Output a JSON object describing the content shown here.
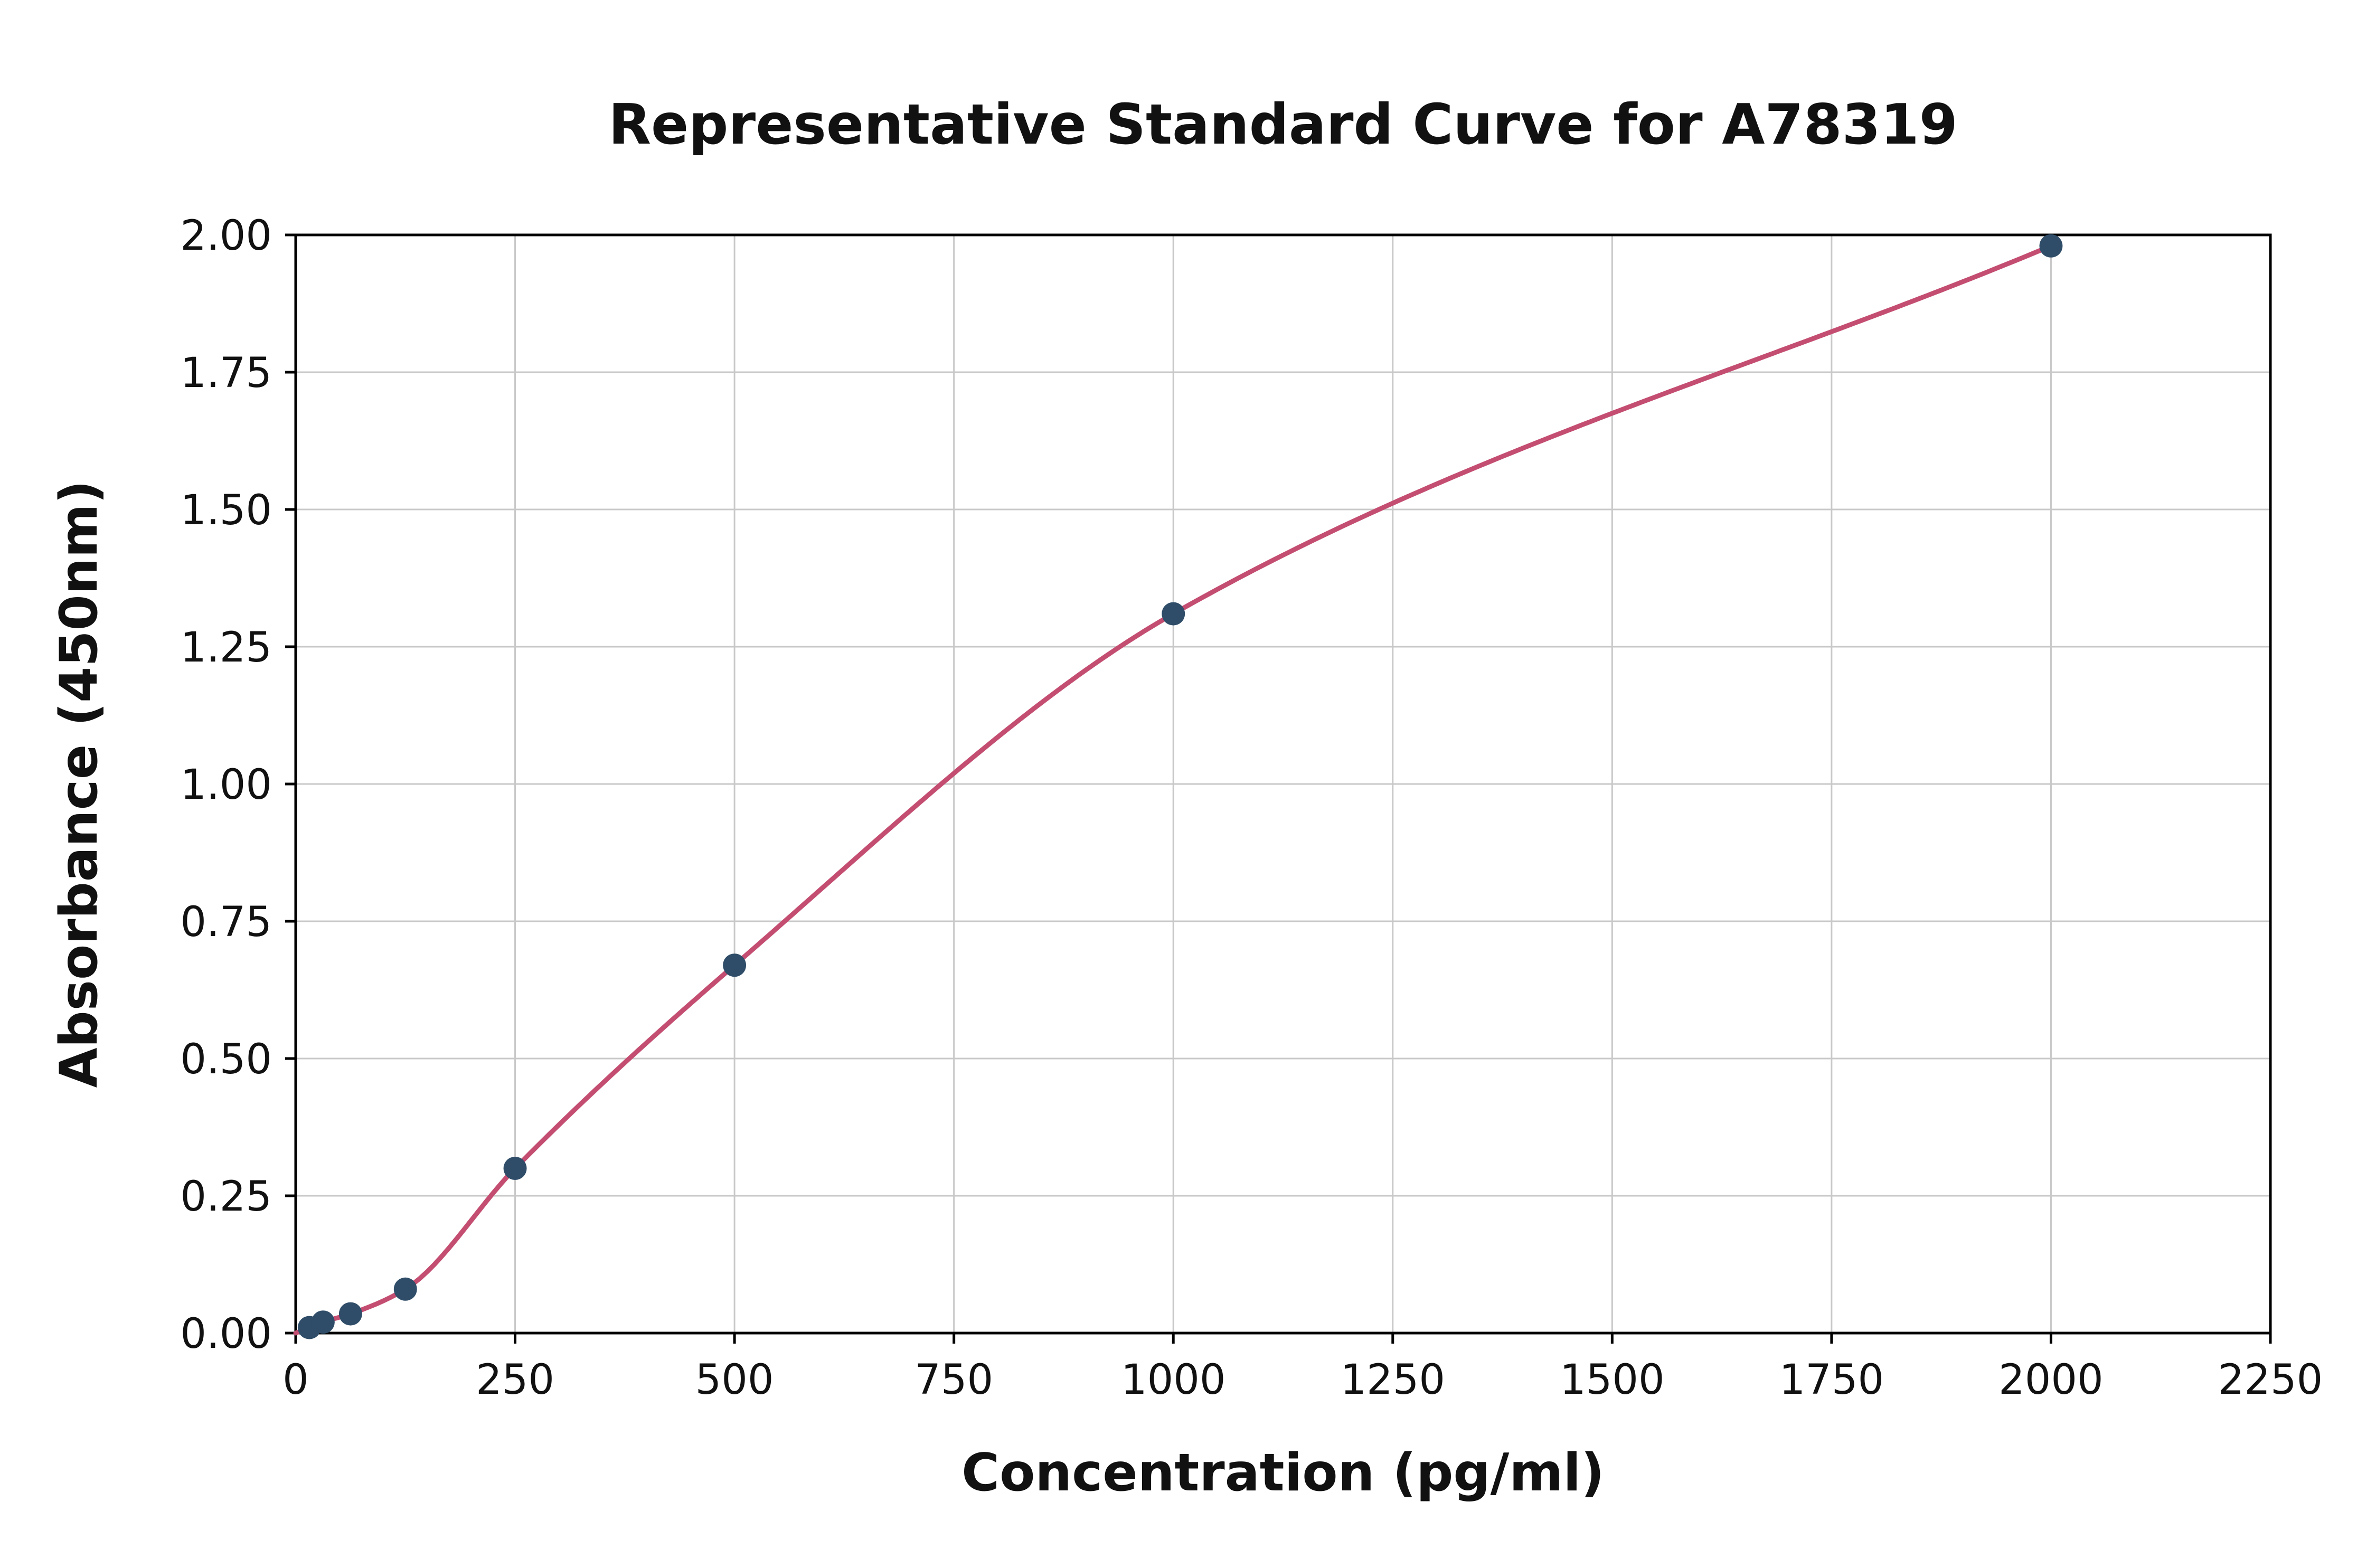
{
  "chart_data": {
    "type": "scatter",
    "title": "Representative Standard Curve for A78319",
    "xlabel": "Concentration (pg/ml)",
    "ylabel": "Absorbance (450nm)",
    "xlim": [
      0,
      2250
    ],
    "ylim": [
      0,
      2.0
    ],
    "x_tick_values": [
      0,
      250,
      500,
      750,
      1000,
      1250,
      1500,
      1750,
      2000,
      2250
    ],
    "x_tick_labels": [
      "0",
      "250",
      "500",
      "750",
      "1000",
      "1250",
      "1500",
      "1750",
      "2000",
      "2250"
    ],
    "y_tick_values": [
      0.0,
      0.25,
      0.5,
      0.75,
      1.0,
      1.25,
      1.5,
      1.75,
      2.0
    ],
    "y_tick_labels": [
      "0.00",
      "0.25",
      "0.50",
      "0.75",
      "1.00",
      "1.25",
      "1.50",
      "1.75",
      "2.00"
    ],
    "grid": true,
    "legend_position": "none",
    "series": [
      {
        "name": "standards",
        "points": [
          {
            "x": 15.6,
            "y": 0.01
          },
          {
            "x": 31.2,
            "y": 0.02
          },
          {
            "x": 62.5,
            "y": 0.035
          },
          {
            "x": 125,
            "y": 0.08
          },
          {
            "x": 250,
            "y": 0.3
          },
          {
            "x": 500,
            "y": 0.67
          },
          {
            "x": 1000,
            "y": 1.31
          },
          {
            "x": 2000,
            "y": 1.98
          }
        ]
      }
    ],
    "fit_curve": {
      "start_x": 0,
      "start_y": 0.0,
      "end_x": 2000,
      "end_y": 1.98
    },
    "colors": {
      "point_color": "#2f4d68",
      "curve_color": "#c44e72",
      "grid_color": "#c8c8c8",
      "spine_color": "#000000",
      "background": "#ffffff"
    }
  }
}
